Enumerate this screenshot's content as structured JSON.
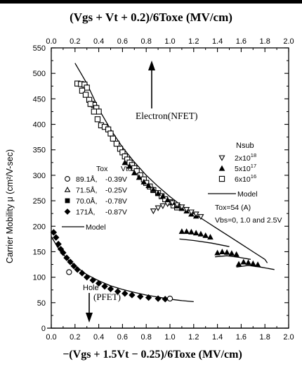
{
  "chart_data": {
    "type": "scatter",
    "top_axis": {
      "label": "(Vgs + Vt + 0.2)/6Toxe (MV/cm)",
      "range": [
        0,
        2.0
      ],
      "ticks": [
        "0.0",
        "0.2",
        "0.4",
        "0.6",
        "0.8",
        "1.0",
        "1.2",
        "1.4",
        "1.6",
        "1.8",
        "2.0"
      ]
    },
    "bottom_axis": {
      "label": "−(Vgs + 1.5Vt − 0.25)/6Toxe (MV/cm)",
      "range": [
        0,
        2.0
      ],
      "ticks": [
        "0.0",
        "0.2",
        "0.4",
        "0.6",
        "0.8",
        "1.0",
        "1.2",
        "1.4",
        "1.6",
        "1.8",
        "2.0"
      ]
    },
    "y_axis": {
      "label": "Carrier Mobility μ (cm²/V-sec)",
      "range": [
        0,
        550
      ],
      "ticks": [
        "0",
        "50",
        "100",
        "150",
        "200",
        "250",
        "300",
        "350",
        "400",
        "450",
        "500",
        "550"
      ]
    },
    "annotations": {
      "electron": "Electron(NFET)",
      "hole_line1": "Hole",
      "hole_line2": "(PFET)"
    },
    "legend_left": {
      "header_tox": "Tox",
      "header_vto": "Vto",
      "entries": [
        {
          "marker": "circle-open",
          "tox": "89.1Å,",
          "vto": "-0.39V"
        },
        {
          "marker": "triangle-open",
          "tox": "71.5Å,",
          "vto": "-0.25V"
        },
        {
          "marker": "square-filled",
          "tox": "70.0Å,",
          "vto": "-0.78V"
        },
        {
          "marker": "diamond-filled",
          "tox": "171Å,",
          "vto": "-0.87V"
        }
      ],
      "model_label": "Model"
    },
    "legend_right": {
      "header": "Nsub",
      "entries": [
        {
          "marker": "triangle-down-open",
          "label": "2x10",
          "exp": "18"
        },
        {
          "marker": "triangle-filled",
          "label": "5x10",
          "exp": "17"
        },
        {
          "marker": "square-open",
          "label": "6x10",
          "exp": "16"
        }
      ],
      "model_label": "Model",
      "note1": "Tox=54 (A)",
      "note2": "Vbs=0, 1.0 and 2.5V"
    },
    "series": [
      {
        "name": "NFET 6x10^16",
        "marker": "square-open",
        "x": [
          0.22,
          0.25,
          0.28,
          0.3,
          0.26,
          0.29,
          0.32,
          0.34,
          0.36,
          0.38,
          0.4,
          0.33,
          0.36,
          0.39,
          0.42,
          0.45,
          0.48,
          0.5,
          0.52,
          0.55,
          0.58,
          0.6,
          0.62,
          0.64,
          0.66,
          0.68,
          0.7,
          0.72,
          0.75,
          0.78,
          0.8,
          0.83,
          0.86,
          0.9,
          0.93,
          0.96,
          1.0,
          1.03,
          1.06
        ],
        "y": [
          480,
          479,
          478,
          472,
          466,
          458,
          448,
          440,
          438,
          432,
          425,
          440,
          425,
          410,
          398,
          395,
          390,
          382,
          372,
          362,
          352,
          345,
          337,
          331,
          325,
          320,
          314,
          308,
          300,
          292,
          285,
          278,
          271,
          265,
          259,
          253,
          247,
          241,
          237
        ]
      },
      {
        "name": "NFET 5x10^17",
        "marker": "triangle-filled",
        "x": [
          0.62,
          0.66,
          0.7,
          0.74,
          0.78,
          0.82,
          0.86,
          0.9,
          0.94,
          0.98,
          1.02,
          1.06,
          1.1,
          1.14,
          1.18,
          1.22
        ],
        "y": [
          325,
          318,
          305,
          296,
          287,
          280,
          272,
          265,
          259,
          252,
          247,
          240,
          235,
          230,
          224,
          220
        ]
      },
      {
        "name": "NFET 2x10^18",
        "marker": "triangle-down-open",
        "x": [
          0.86,
          0.9,
          0.94,
          0.98,
          1.02,
          1.06,
          1.1,
          1.14,
          1.18,
          1.22,
          1.26
        ],
        "y": [
          230,
          236,
          240,
          244,
          246,
          242,
          238,
          233,
          228,
          224,
          219
        ]
      },
      {
        "name": "NFET Vbs=1.0V",
        "marker": "triangle-filled",
        "x": [
          1.1,
          1.14,
          1.18,
          1.22,
          1.26,
          1.3,
          1.34
        ],
        "y": [
          190,
          190,
          189,
          187,
          185,
          182,
          179
        ]
      },
      {
        "name": "NFET Vbs=2.5V",
        "marker": "triangle-filled",
        "x": [
          1.4,
          1.44,
          1.48,
          1.52,
          1.56
        ],
        "y": [
          148,
          150,
          149,
          147,
          145
        ]
      },
      {
        "name": "NFET Vbs=2.5V high field",
        "marker": "triangle-filled",
        "x": [
          1.58,
          1.62,
          1.66,
          1.7,
          1.74
        ],
        "y": [
          126,
          130,
          129,
          127,
          125
        ]
      },
      {
        "name": "PFET 171A",
        "marker": "diamond-filled",
        "x": [
          0.02,
          0.04,
          0.06,
          0.08,
          0.1,
          0.13,
          0.16,
          0.19,
          0.22,
          0.26,
          0.3,
          0.35,
          0.4,
          0.45,
          0.5,
          0.56,
          0.62,
          0.68,
          0.75,
          0.82,
          0.9,
          0.96
        ],
        "y": [
          188,
          178,
          165,
          155,
          148,
          138,
          130,
          122,
          115,
          108,
          100,
          94,
          88,
          82,
          77,
          72,
          68,
          65,
          62,
          60,
          58,
          57
        ]
      },
      {
        "name": "PFET 89.1A",
        "marker": "circle-open",
        "x": [
          0.15,
          1.0
        ],
        "y": [
          110,
          58
        ]
      }
    ],
    "models": [
      {
        "name": "NFET model",
        "x": [
          0.2,
          0.25,
          0.3,
          0.4,
          0.5,
          0.6,
          0.7,
          0.8,
          0.9,
          1.0,
          1.1,
          1.2,
          1.3,
          1.4,
          1.5,
          1.6,
          1.7,
          1.8,
          1.82
        ],
        "y": [
          520,
          500,
          480,
          430,
          390,
          355,
          326,
          300,
          278,
          258,
          240,
          225,
          210,
          195,
          180,
          165,
          150,
          135,
          128
        ]
      },
      {
        "name": "PFET model",
        "x": [
          0.0,
          0.05,
          0.1,
          0.15,
          0.2,
          0.3,
          0.4,
          0.5,
          0.6,
          0.7,
          0.8,
          0.9,
          1.0,
          1.1,
          1.2
        ],
        "y": [
          180,
          160,
          145,
          132,
          122,
          105,
          93,
          83,
          76,
          70,
          65,
          61,
          57,
          54,
          52
        ]
      },
      {
        "name": "Vbs model 1",
        "x": [
          1.08,
          1.2,
          1.35,
          1.5
        ],
        "y": [
          175,
          172,
          167,
          160
        ]
      },
      {
        "name": "Vbs model 2",
        "x": [
          1.38,
          1.48,
          1.58,
          1.68
        ],
        "y": [
          140,
          142,
          139,
          135
        ]
      },
      {
        "name": "Vbs model 3",
        "x": [
          1.56,
          1.66,
          1.76,
          1.88
        ],
        "y": [
          120,
          123,
          120,
          115
        ]
      }
    ]
  }
}
